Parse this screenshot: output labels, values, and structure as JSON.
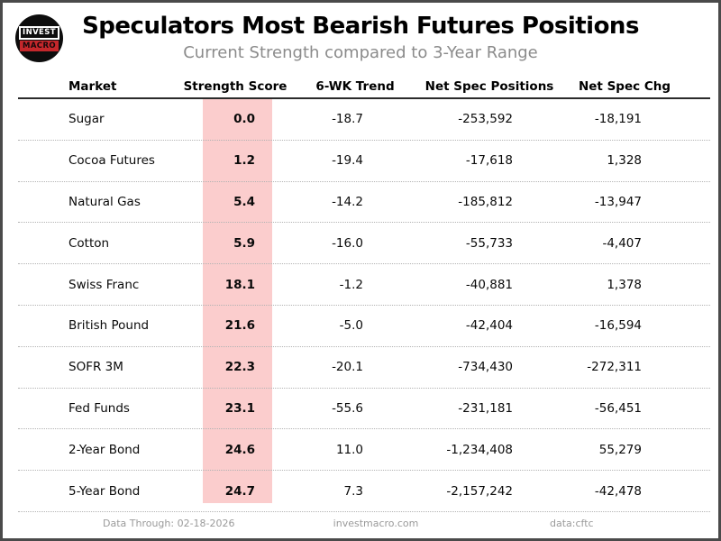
{
  "header": {
    "title": "Speculators Most Bearish Futures Positions",
    "subtitle": "Current Strength compared to 3-Year Range",
    "logo_line1": "INVEST",
    "logo_line2": "MACRO"
  },
  "table": {
    "columns": [
      "Market",
      "Strength Score",
      "6-WK Trend",
      "Net Spec Positions",
      "Net Spec Chg"
    ],
    "rows": [
      {
        "market": "Sugar",
        "score": "0.0",
        "trend": "-18.7",
        "positions": "-253,592",
        "chg": "-18,191"
      },
      {
        "market": "Cocoa Futures",
        "score": "1.2",
        "trend": "-19.4",
        "positions": "-17,618",
        "chg": "1,328"
      },
      {
        "market": "Natural Gas",
        "score": "5.4",
        "trend": "-14.2",
        "positions": "-185,812",
        "chg": "-13,947"
      },
      {
        "market": "Cotton",
        "score": "5.9",
        "trend": "-16.0",
        "positions": "-55,733",
        "chg": "-4,407"
      },
      {
        "market": "Swiss Franc",
        "score": "18.1",
        "trend": "-1.2",
        "positions": "-40,881",
        "chg": "1,378"
      },
      {
        "market": "British Pound",
        "score": "21.6",
        "trend": "-5.0",
        "positions": "-42,404",
        "chg": "-16,594"
      },
      {
        "market": "SOFR 3M",
        "score": "22.3",
        "trend": "-20.1",
        "positions": "-734,430",
        "chg": "-272,311"
      },
      {
        "market": "Fed Funds",
        "score": "23.1",
        "trend": "-55.6",
        "positions": "-231,181",
        "chg": "-56,451"
      },
      {
        "market": "2-Year Bond",
        "score": "24.6",
        "trend": "11.0",
        "positions": "-1,234,408",
        "chg": "55,279"
      },
      {
        "market": "5-Year Bond",
        "score": "24.7",
        "trend": "7.3",
        "positions": "-2,157,242",
        "chg": "-42,478"
      }
    ]
  },
  "footer": {
    "data_through": "Data Through: 02-18-2026",
    "site": "investmacro.com",
    "source": "data:cftc"
  },
  "colors": {
    "score_column_highlight": "#fbcdcd",
    "logo_red": "#c4272b",
    "subtitle_gray": "#8b8b8b",
    "footer_gray": "#9a9a9a"
  },
  "chart_data": {
    "type": "table",
    "title": "Speculators Most Bearish Futures Positions",
    "subtitle": "Current Strength compared to 3-Year Range",
    "columns": [
      "Market",
      "Strength Score",
      "6-WK Trend",
      "Net Spec Positions",
      "Net Spec Chg"
    ],
    "rows": [
      [
        "Sugar",
        0.0,
        -18.7,
        -253592,
        -18191
      ],
      [
        "Cocoa Futures",
        1.2,
        -19.4,
        -17618,
        1328
      ],
      [
        "Natural Gas",
        5.4,
        -14.2,
        -185812,
        -13947
      ],
      [
        "Cotton",
        5.9,
        -16.0,
        -55733,
        -4407
      ],
      [
        "Swiss Franc",
        18.1,
        -1.2,
        -40881,
        1378
      ],
      [
        "British Pound",
        21.6,
        -5.0,
        -42404,
        -16594
      ],
      [
        "SOFR 3M",
        22.3,
        -20.1,
        -734430,
        -272311
      ],
      [
        "Fed Funds",
        23.1,
        -55.6,
        -231181,
        -56451
      ],
      [
        "2-Year Bond",
        24.6,
        11.0,
        -1234408,
        55279
      ],
      [
        "5-Year Bond",
        24.7,
        7.3,
        -2157242,
        -42478
      ]
    ],
    "notes": "Strength Score column highlighted light red; scores sorted ascending (most bearish first)",
    "highlight_column": "Strength Score",
    "footer": [
      "Data Through: 02-18-2026",
      "investmacro.com",
      "data:cftc"
    ]
  }
}
